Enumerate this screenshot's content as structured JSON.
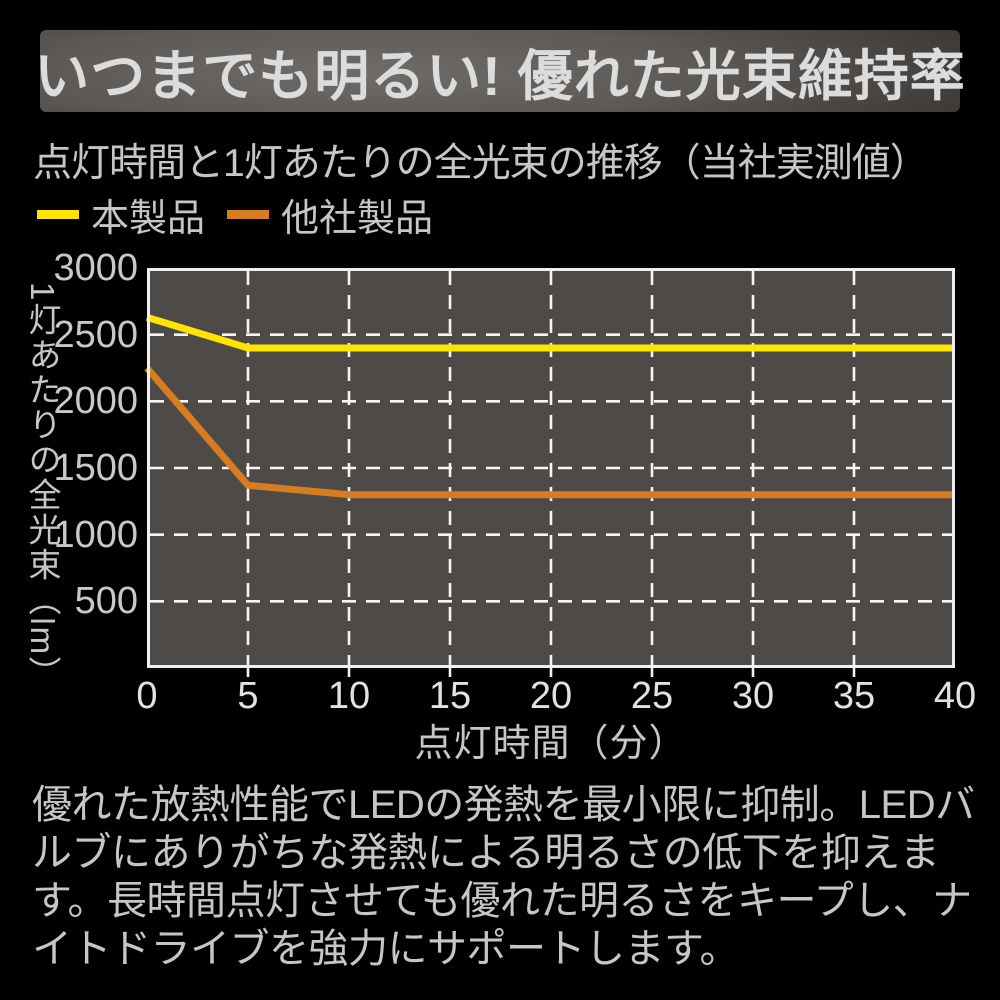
{
  "banner": {
    "title": "いつまでも明るい! 優れた光束維持率"
  },
  "chart": {
    "subtitle": "点灯時間と1灯あたりの全光束の推移（当社実測値）"
  },
  "chart_data": {
    "type": "line",
    "title": "点灯時間と1灯あたりの全光束の推移（当社実測値）",
    "xlabel": "点灯時間（分）",
    "ylabel": "1灯あたりの全光束（lm）",
    "x": [
      0,
      5,
      10,
      15,
      20,
      25,
      30,
      35,
      40
    ],
    "xticks": [
      0,
      5,
      10,
      15,
      20,
      25,
      30,
      35,
      40
    ],
    "yticks": [
      500,
      1000,
      1500,
      2000,
      2500,
      3000
    ],
    "xlim": [
      0,
      40
    ],
    "ylim": [
      0,
      3000
    ],
    "grid": "dashed",
    "legend_position": "top-left-above-plot",
    "plot_bg_color": "#4d4a48",
    "grid_color": "#f5f5f5",
    "axis_color": "#f0f0f0",
    "series": [
      {
        "name": "本製品",
        "color": "#ffe400",
        "values": [
          2630,
          2400,
          2400,
          2400,
          2400,
          2400,
          2400,
          2400,
          2400
        ]
      },
      {
        "name": "他社製品",
        "color": "#d87c20",
        "values": [
          2250,
          1370,
          1300,
          1300,
          1300,
          1300,
          1300,
          1300,
          1300
        ]
      }
    ]
  },
  "description": {
    "text": "優れた放熱性能でLEDの発熱を最小限に抑制。LEDバルブにありがちな発熱による明るさの低下を抑えます。長時間点灯させても優れた明るさをキープし、ナイトドライブを強力にサポートします。"
  }
}
